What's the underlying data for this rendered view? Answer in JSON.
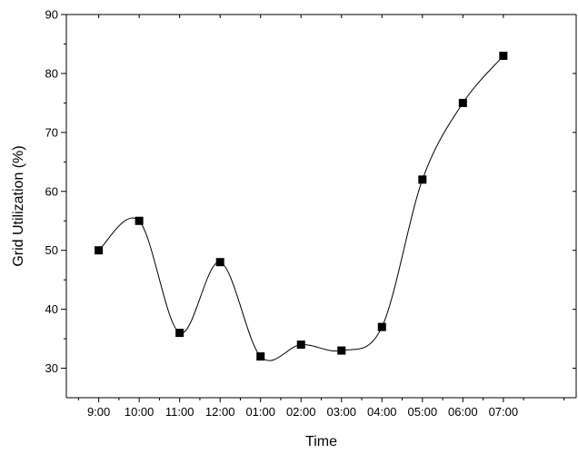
{
  "chart_data": {
    "type": "line",
    "title": "",
    "xlabel": "Time",
    "ylabel": "Grid Utilization (%)",
    "categories": [
      "9:00",
      "10:00",
      "11:00",
      "12:00",
      "01:00",
      "02:00",
      "03:00",
      "04:00",
      "05:00",
      "06:00",
      "07:00"
    ],
    "series": [
      {
        "values": [
          50,
          55,
          36,
          48,
          32,
          34,
          33,
          37,
          62,
          75,
          83
        ]
      }
    ],
    "ylim": [
      25,
      90
    ],
    "yticks": [
      30,
      40,
      50,
      60,
      70,
      80,
      90
    ],
    "xlim": [
      -0.8,
      11.8
    ],
    "grid": false,
    "smooth": true,
    "marker": "square",
    "line_color": "#000000",
    "marker_color": "#000000"
  }
}
